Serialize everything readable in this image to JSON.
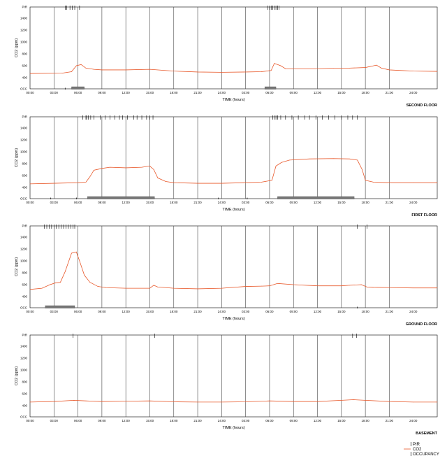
{
  "chart_data": [
    {
      "type": "line",
      "panel_label": "SECOND FLOOR",
      "xlabel": "TIME (hours)",
      "ylabel": "CO2 (ppm)",
      "x_tick_labels": [
        "00:00",
        "03:00",
        "06:00",
        "09:00",
        "12:00",
        "15:00",
        "18:00",
        "21:00",
        "24:00",
        "03:00",
        "06:00",
        "09:00",
        "12:00",
        "15:00",
        "18:00",
        "21:00",
        "24:00"
      ],
      "y_tick_labels": [
        "PIR",
        "1400",
        "1200",
        "1000",
        "800",
        "600",
        "400",
        "OCC"
      ],
      "ylim": [
        300,
        1500
      ],
      "xlim_hours": [
        0,
        51
      ],
      "series": [
        {
          "name": "CO2",
          "x": [
            0,
            4,
            5.2,
            5.8,
            6.4,
            7,
            8,
            9,
            12,
            15,
            18,
            21,
            24,
            27,
            29,
            30.2,
            30.6,
            31.4,
            32,
            36,
            38,
            40,
            42,
            43.4,
            44,
            45,
            48,
            51
          ],
          "y": [
            470,
            475,
            500,
            600,
            620,
            560,
            540,
            530,
            530,
            540,
            510,
            495,
            490,
            495,
            500,
            520,
            640,
            600,
            550,
            550,
            560,
            560,
            570,
            610,
            560,
            530,
            510,
            505
          ]
        }
      ],
      "pir_events": [
        4.4,
        4.6,
        5.0,
        5.3,
        5.6,
        6.2,
        29.8,
        30.0,
        30.2,
        30.4,
        30.6,
        30.8,
        31.0,
        31.2
      ],
      "occupancy_periods": [
        [
          5.2,
          6.8
        ],
        [
          29.4,
          30.8
        ]
      ],
      "occ_dots": [
        4.4
      ]
    },
    {
      "type": "line",
      "panel_label": "FIRST FLOOR",
      "xlabel": "TIME (hours)",
      "ylabel": "CO2 (ppm)",
      "x_tick_labels": [
        "00:00",
        "03:00",
        "06:00",
        "09:00",
        "12:00",
        "15:00",
        "18:00",
        "21:00",
        "24:00",
        "03:00",
        "06:00",
        "09:00",
        "12:00",
        "15:00",
        "18:00",
        "21:00",
        "24:00"
      ],
      "y_tick_labels": [
        "PIR",
        "1400",
        "1200",
        "1000",
        "800",
        "600",
        "400",
        "OCC"
      ],
      "ylim": [
        300,
        1500
      ],
      "xlim_hours": [
        0,
        51
      ],
      "series": [
        {
          "name": "CO2",
          "x": [
            0,
            3,
            6,
            7,
            7.5,
            8,
            9,
            10,
            12,
            14,
            15,
            15.5,
            16,
            17,
            18,
            21,
            24,
            27,
            29,
            30.3,
            30.8,
            31.5,
            32.5,
            35,
            38,
            40,
            41,
            41.6,
            42,
            43,
            45,
            48,
            51
          ],
          "y": [
            460,
            470,
            480,
            490,
            580,
            690,
            720,
            740,
            730,
            740,
            760,
            700,
            560,
            500,
            480,
            470,
            470,
            480,
            490,
            520,
            760,
            820,
            860,
            880,
            885,
            880,
            860,
            700,
            520,
            490,
            480,
            480,
            480
          ]
        }
      ],
      "pir_events": [
        6.6,
        7.0,
        7.1,
        7.3,
        7.6,
        8.0,
        8.8,
        9.4,
        10.0,
        10.6,
        11.2,
        11.6,
        12.2,
        13.0,
        13.4,
        14.0,
        14.6,
        15.0,
        15.4,
        30.4,
        30.6,
        30.8,
        31.0,
        31.4,
        32.0,
        32.8,
        33.6,
        34.4,
        35.0,
        35.8,
        36.6,
        37.4,
        38.2,
        39.0,
        39.8,
        40.4,
        41.0
      ],
      "occupancy_periods": [
        [
          7.2,
          15.6
        ],
        [
          31.0,
          40.6
        ]
      ],
      "occ_dots": [
        2.6,
        5.8,
        23.6,
        27.2
      ]
    },
    {
      "type": "line",
      "panel_label": "GROUND FLOOR",
      "xlabel": "TIME (hours)",
      "ylabel": "CO2 (ppm)",
      "x_tick_labels": [
        "00:00",
        "03:00",
        "06:00",
        "09:00",
        "12:00",
        "15:00",
        "18:00",
        "21:00",
        "24:00",
        "03:00",
        "06:00",
        "09:00",
        "12:00",
        "15:00",
        "18:00",
        "21:00",
        "24:00"
      ],
      "y_tick_labels": [
        "PIR",
        "1400",
        "1200",
        "1000",
        "800",
        "600",
        "400",
        "OCC"
      ],
      "ylim": [
        300,
        1500
      ],
      "xlim_hours": [
        0,
        51
      ],
      "series": [
        {
          "name": "CO2",
          "x": [
            0,
            1.5,
            2.5,
            3.2,
            3.8,
            4.4,
            5.2,
            5.8,
            6.2,
            6.8,
            7.5,
            8.5,
            9.5,
            12,
            15,
            15.5,
            16,
            18,
            21,
            24,
            27,
            29,
            30,
            31,
            33,
            36,
            39,
            40,
            41.5,
            42.2,
            43,
            45,
            48,
            51
          ],
          "y": [
            520,
            540,
            600,
            630,
            640,
            820,
            1130,
            1150,
            1000,
            760,
            640,
            570,
            550,
            540,
            540,
            590,
            560,
            540,
            530,
            540,
            570,
            575,
            580,
            620,
            600,
            580,
            580,
            590,
            600,
            560,
            555,
            550,
            545,
            545
          ]
        }
      ],
      "pir_events": [
        1.8,
        2.1,
        2.4,
        2.7,
        3.0,
        3.3,
        3.6,
        3.9,
        4.2,
        4.5,
        4.8,
        5.1,
        5.4,
        5.6,
        41.0,
        42.2
      ],
      "occupancy_periods": [
        [
          1.9,
          5.6
        ]
      ],
      "occ_dots": [
        41.0
      ]
    },
    {
      "type": "line",
      "panel_label": "BASEMENT",
      "xlabel": "TIME (hours)",
      "ylabel": "CO2 (ppm)",
      "x_tick_labels": [
        "00:00",
        "03:00",
        "06:00",
        "09:00",
        "12:00",
        "15:00",
        "18:00",
        "21:00",
        "24:00",
        "03:00",
        "06:00",
        "09:00",
        "12:00",
        "15:00",
        "18:00",
        "21:00",
        "24:00"
      ],
      "y_tick_labels": [
        "PIR",
        "1400",
        "1200",
        "1000",
        "800",
        "600",
        "400",
        "OCC"
      ],
      "ylim": [
        300,
        1500
      ],
      "xlim_hours": [
        0,
        51
      ],
      "series": [
        {
          "name": "CO2",
          "x": [
            0,
            3,
            5.5,
            7,
            9,
            12,
            15,
            18,
            21,
            24,
            27,
            30,
            33,
            36,
            39,
            40.5,
            42,
            45,
            48,
            51
          ],
          "y": [
            460,
            470,
            490,
            480,
            470,
            475,
            480,
            465,
            460,
            460,
            465,
            480,
            470,
            470,
            490,
            500,
            490,
            470,
            460,
            460
          ]
        }
      ],
      "pir_events": [
        5.4,
        15.6,
        40.4,
        40.9
      ],
      "occupancy_periods": [],
      "occ_dots": []
    }
  ],
  "legend": {
    "items": [
      {
        "label": "PIR",
        "symbol": "tick",
        "color": "#000000"
      },
      {
        "label": "CO2",
        "symbol": "line",
        "color": "#e8582a"
      },
      {
        "label": "OCCUPANCY",
        "symbol": "tick",
        "color": "#000000"
      }
    ],
    "placement": "bottom-right"
  },
  "colors": {
    "co2": "#e8582a",
    "grid": "#444444",
    "occupancy": "#777777",
    "axis": "#000000"
  }
}
